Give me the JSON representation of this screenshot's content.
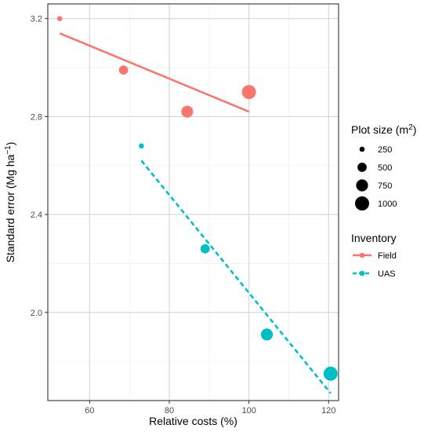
{
  "chart_data": {
    "type": "scatter",
    "xlabel": "Relative costs (%)",
    "ylabel": {
      "prefix": "Standard error (Mg ha",
      "sup": "−1",
      "suffix": ")"
    },
    "xlim": [
      49.5,
      122.5
    ],
    "ylim": [
      1.64,
      3.26
    ],
    "x_ticks": [
      60,
      80,
      100,
      120
    ],
    "y_ticks": [
      2.0,
      2.4,
      2.8,
      3.2
    ],
    "y_tick_labels": [
      "2.0",
      "2.4",
      "2.8",
      "3.2"
    ],
    "x_minor": [
      50,
      70,
      90,
      110
    ],
    "y_minor": [
      1.8,
      2.2,
      2.6,
      3.0
    ],
    "grid": true,
    "series": [
      {
        "name": "Field",
        "color": "#F8766D",
        "linetype": "solid",
        "points": [
          {
            "x": 52.5,
            "y": 3.2,
            "size": 250
          },
          {
            "x": 68.5,
            "y": 2.99,
            "size": 500
          },
          {
            "x": 84.5,
            "y": 2.82,
            "size": 750
          },
          {
            "x": 100,
            "y": 2.9,
            "size": 1000
          }
        ],
        "fit": {
          "x": [
            52.5,
            100
          ],
          "y": [
            3.14,
            2.82
          ]
        }
      },
      {
        "name": "UAS",
        "color": "#00BFC4",
        "linetype": "dashed",
        "points": [
          {
            "x": 73,
            "y": 2.68,
            "size": 250
          },
          {
            "x": 89,
            "y": 2.26,
            "size": 500
          },
          {
            "x": 104.5,
            "y": 1.91,
            "size": 750
          },
          {
            "x": 120.5,
            "y": 1.75,
            "size": 1000
          }
        ],
        "fit": {
          "x": [
            73,
            120.5
          ],
          "y": [
            2.62,
            1.67
          ]
        }
      }
    ],
    "legend": {
      "position": "right",
      "size_title": {
        "prefix": "Plot size (m",
        "sup": "2",
        "suffix": ")"
      },
      "size_entries": [
        250,
        500,
        750,
        1000
      ],
      "size_labels": [
        "250",
        "500",
        "750",
        "1000"
      ],
      "color_title": "Inventory",
      "color_entries": [
        "Field",
        "UAS"
      ]
    }
  }
}
